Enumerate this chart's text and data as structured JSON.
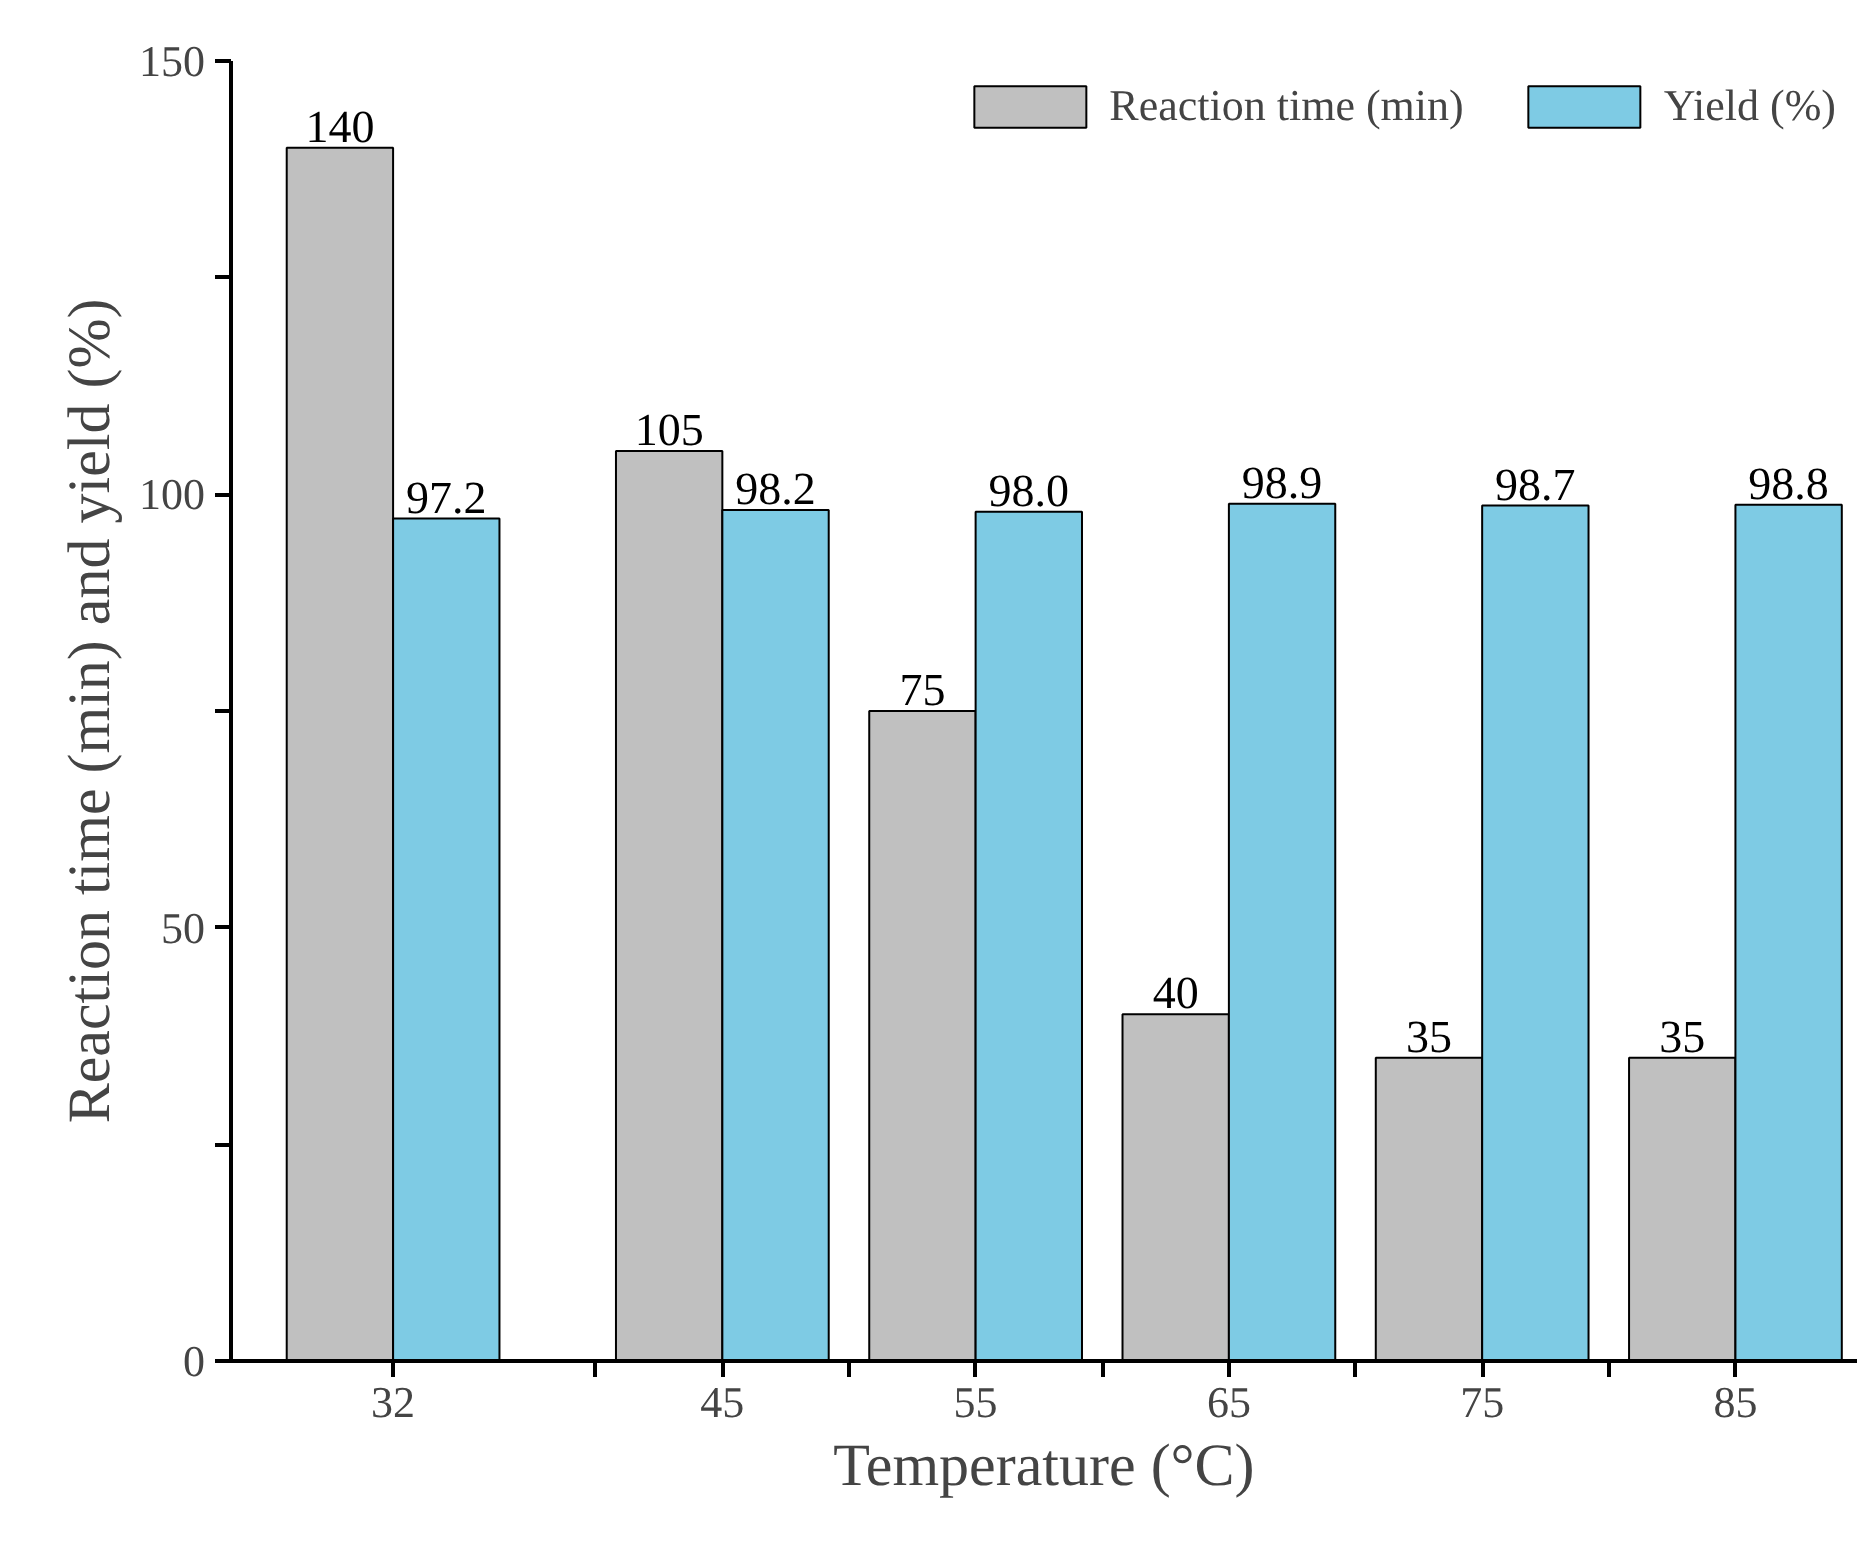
{
  "chart_data": {
    "type": "bar",
    "xlabel": "Temperature (°C)",
    "ylabel": "Reaction time (min) and yield (%)",
    "x": [
      32,
      45,
      55,
      65,
      75,
      85
    ],
    "series": [
      {
        "name": "Reaction time (min)",
        "color": "#c0c0c0",
        "values": [
          140,
          105,
          75,
          40,
          35,
          35
        ],
        "value_labels": [
          "140",
          "105",
          "75",
          "40",
          "35",
          "35"
        ]
      },
      {
        "name": "Yield (%)",
        "color": "#7ecbe4",
        "values": [
          97.2,
          98.2,
          98.0,
          98.9,
          98.7,
          98.8
        ],
        "value_labels": [
          "97.2",
          "98.2",
          "98.0",
          "98.9",
          "98.7",
          "98.8"
        ]
      }
    ],
    "xlim": [
      25.6,
      89.8
    ],
    "xticks": [
      {
        "value": 32,
        "label": "32"
      },
      {
        "value": 40,
        "label": null
      },
      {
        "value": 45,
        "label": "45"
      },
      {
        "value": 50,
        "label": null
      },
      {
        "value": 55,
        "label": "55"
      },
      {
        "value": 60,
        "label": null
      },
      {
        "value": 65,
        "label": "65"
      },
      {
        "value": 70,
        "label": null
      },
      {
        "value": 75,
        "label": "75"
      },
      {
        "value": 80,
        "label": null
      },
      {
        "value": 85,
        "label": "85"
      }
    ],
    "ylim": [
      0,
      150
    ],
    "yticks": [
      0,
      {
        "value": 25,
        "label": null
      },
      50,
      {
        "value": 75,
        "label": null
      },
      100,
      {
        "value": 125,
        "label": null
      },
      150
    ],
    "legend": "top right",
    "grid": false
  }
}
